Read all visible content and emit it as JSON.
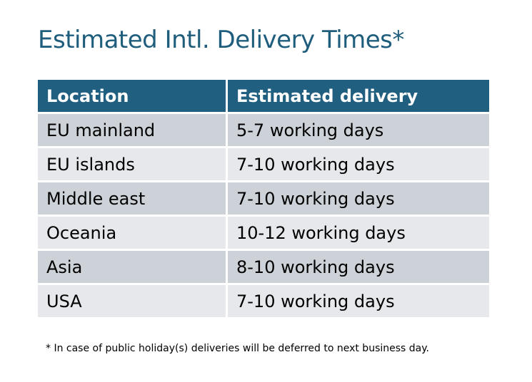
{
  "title": "Estimated Intl. Delivery Times*",
  "table": {
    "headers": [
      "Location",
      "Estimated delivery"
    ],
    "rows": [
      [
        "EU mainland",
        "5-7 working days"
      ],
      [
        "EU islands",
        "7-10 working days"
      ],
      [
        "Middle east",
        "7-10 working days"
      ],
      [
        "Oceania",
        "10-12 working days"
      ],
      [
        "Asia",
        "8-10 working days"
      ],
      [
        "USA",
        "7-10 working days"
      ]
    ]
  },
  "footnote": "* In case of public holiday(s) deliveries will be deferred to next business day.",
  "colors": {
    "header": "#215f80",
    "title": "#1f5d7d",
    "row_odd": "#cdd1d8",
    "row_even": "#e6e8eb"
  }
}
